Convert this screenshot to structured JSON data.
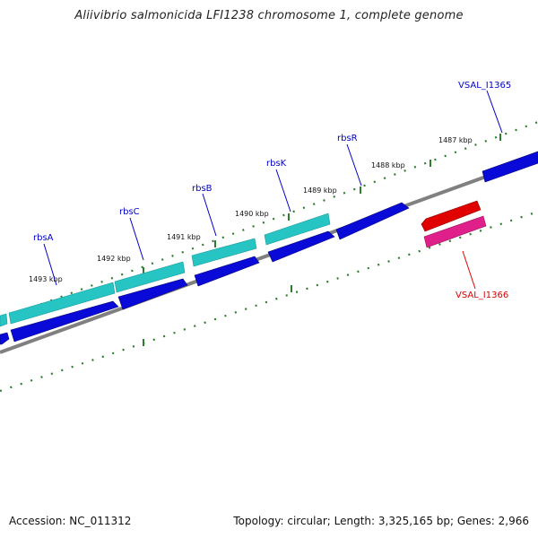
{
  "title": "Aliivibrio salmonicida LFI1238 chromosome 1, complete genome",
  "footer": {
    "accession": "Accession: NC_011312",
    "stats": "Topology: circular; Length: 3,325,165 bp; Genes: 2,966"
  },
  "scale": {
    "labels": [
      "1493 kbp",
      "1492 kbp",
      "1491 kbp",
      "1490 kbp",
      "1489 kbp",
      "1488 kbp",
      "1487 kbp"
    ]
  },
  "genes": {
    "forward": [
      "rbsA",
      "rbsC",
      "rbsB",
      "rbsK",
      "rbsR",
      "VSAL_I1365"
    ],
    "reverse": [
      "VSAL_I1366"
    ]
  },
  "colors": {
    "backbone": "#808080",
    "tick": "#2e7d2e",
    "gene_dark_blue": "#0a0ad8",
    "gene_cyan": "#27c4c4",
    "gene_red": "#e00000",
    "gene_pink": "#e0208a",
    "label_blue": "#0000cc",
    "label_red": "#dd0000"
  }
}
